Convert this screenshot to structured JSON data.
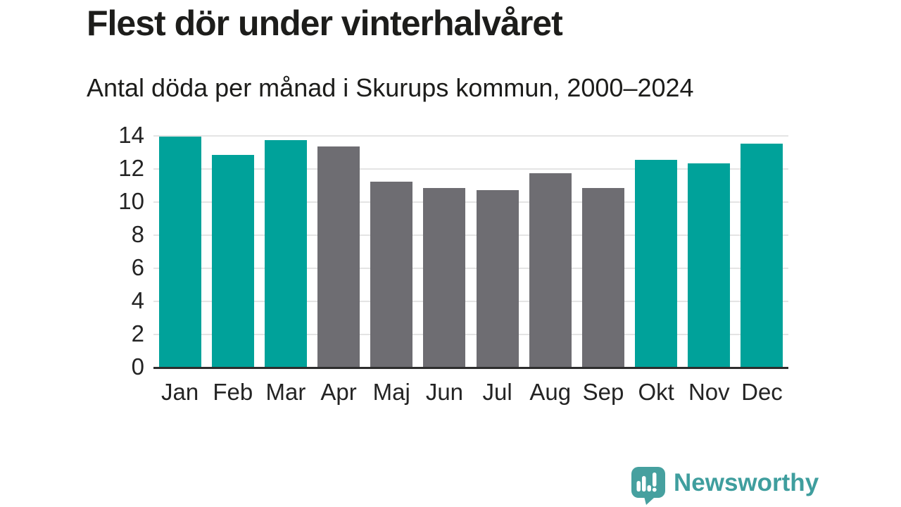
{
  "header": {
    "title": "Flest dör under vinterhalvåret",
    "subtitle": "Antal döda per månad i Skurups kommun, 2000–2024"
  },
  "chart_data": {
    "type": "bar",
    "title": "Flest dör under vinterhalvåret",
    "subtitle": "Antal döda per månad i Skurups kommun, 2000–2024",
    "categories": [
      "Jan",
      "Feb",
      "Mar",
      "Apr",
      "Maj",
      "Jun",
      "Jul",
      "Aug",
      "Sep",
      "Okt",
      "Nov",
      "Dec"
    ],
    "values": [
      13.9,
      12.8,
      13.7,
      13.3,
      11.2,
      10.8,
      10.7,
      11.7,
      10.8,
      12.5,
      12.3,
      13.5
    ],
    "bar_color_keys": [
      "teal",
      "teal",
      "teal",
      "gray",
      "gray",
      "gray",
      "gray",
      "gray",
      "gray",
      "teal",
      "teal",
      "teal"
    ],
    "colors": {
      "teal": "#00a29a",
      "gray": "#6e6d72"
    },
    "xlabel": "",
    "ylabel": "",
    "ylim": [
      0,
      14
    ],
    "yticks": [
      0,
      2,
      4,
      6,
      8,
      10,
      12,
      14
    ],
    "grid": "horizontal",
    "legend": "none"
  },
  "footer": {
    "brand": "Newsworthy",
    "brand_color": "#3f9e9e",
    "logo_icon": "speech-bubble-bar-chart-exclamation"
  }
}
